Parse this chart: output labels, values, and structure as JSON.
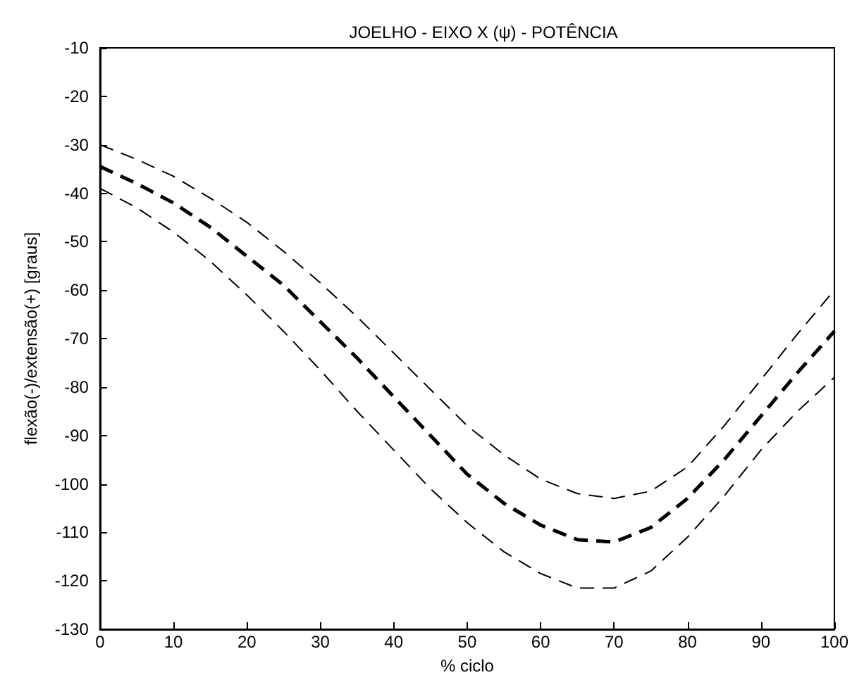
{
  "chart_data": {
    "type": "line",
    "title": "JOELHO - EIXO X (ψ) - POTÊNCIA",
    "xlabel": "% ciclo",
    "ylabel": "flexão(-)/extensão(+) [graus]",
    "x": [
      0,
      5,
      10,
      15,
      20,
      25,
      30,
      35,
      40,
      45,
      50,
      55,
      60,
      65,
      70,
      75,
      80,
      85,
      90,
      95,
      100
    ],
    "series": [
      {
        "color": "#000000",
        "line_style": "dashed",
        "values": [
          -30,
          -33,
          -36.5,
          -41,
          -46,
          -52,
          -58.5,
          -65.5,
          -73,
          -80.5,
          -88,
          -94,
          -99,
          -102,
          -103,
          -101.5,
          -96.5,
          -88,
          -78.5,
          -69,
          -60
        ]
      },
      {
        "color": "#000000",
        "line_style": "dashed",
        "values": [
          -34.5,
          -38,
          -42,
          -47,
          -53,
          -59,
          -66.5,
          -74,
          -82,
          -90,
          -98,
          -104,
          -108.5,
          -111.5,
          -112,
          -109,
          -103,
          -95,
          -86,
          -77,
          -68.5
        ]
      },
      {
        "color": "#000000",
        "line_style": "dashed",
        "values": [
          -39,
          -43,
          -48,
          -54,
          -61,
          -68.5,
          -76.5,
          -85,
          -93,
          -101,
          -108,
          -114,
          -118.5,
          -121.5,
          -121.5,
          -118,
          -111,
          -102.5,
          -93,
          -85,
          -78
        ]
      }
    ],
    "xlim": [
      0,
      100
    ],
    "xticks": [
      0,
      10,
      20,
      30,
      40,
      50,
      60,
      70,
      80,
      90,
      100
    ],
    "ylim": [
      -130,
      -10
    ],
    "yticks": [
      -130,
      -120,
      -110,
      -100,
      -90,
      -80,
      -70,
      -60,
      -50,
      -40,
      -30,
      -20,
      -10
    ],
    "grid": false,
    "marker": "none"
  }
}
